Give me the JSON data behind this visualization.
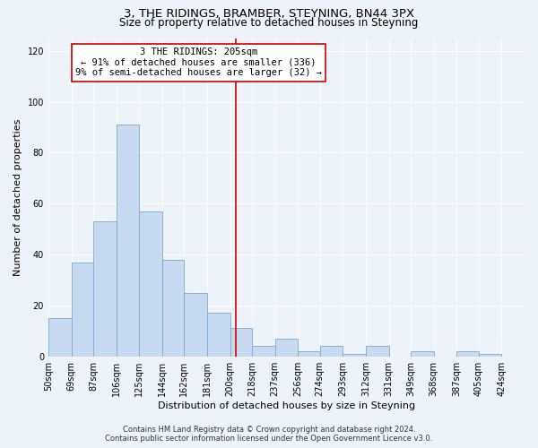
{
  "title": "3, THE RIDINGS, BRAMBER, STEYNING, BN44 3PX",
  "subtitle": "Size of property relative to detached houses in Steyning",
  "xlabel": "Distribution of detached houses by size in Steyning",
  "ylabel": "Number of detached properties",
  "bar_heights": [
    15,
    37,
    53,
    91,
    57,
    38,
    25,
    17,
    11,
    4,
    7,
    2,
    4,
    1,
    4,
    0,
    2,
    0,
    2,
    1
  ],
  "bin_labels": [
    "50sqm",
    "69sqm",
    "87sqm",
    "106sqm",
    "125sqm",
    "144sqm",
    "162sqm",
    "181sqm",
    "200sqm",
    "218sqm",
    "237sqm",
    "256sqm",
    "274sqm",
    "293sqm",
    "312sqm",
    "331sqm",
    "349sqm",
    "368sqm",
    "387sqm",
    "405sqm",
    "424sqm"
  ],
  "bin_edges": [
    50,
    69,
    87,
    106,
    125,
    144,
    162,
    181,
    200,
    218,
    237,
    256,
    274,
    293,
    312,
    331,
    349,
    368,
    387,
    405,
    424
  ],
  "bar_color": "#c8daf0",
  "bar_edge_color": "#7aabcf",
  "vline_x": 205,
  "vline_color": "#cc0000",
  "ylim": [
    0,
    125
  ],
  "yticks": [
    0,
    20,
    40,
    60,
    80,
    100,
    120
  ],
  "annotation_title": "3 THE RIDINGS: 205sqm",
  "annotation_line1": "← 91% of detached houses are smaller (336)",
  "annotation_line2": "9% of semi-detached houses are larger (32) →",
  "annotation_box_facecolor": "#ffffff",
  "annotation_box_edgecolor": "#cc0000",
  "footer1": "Contains HM Land Registry data © Crown copyright and database right 2024.",
  "footer2": "Contains public sector information licensed under the Open Government Licence v3.0.",
  "title_fontsize": 9.5,
  "subtitle_fontsize": 8.5,
  "axis_label_fontsize": 8,
  "tick_fontsize": 7,
  "annotation_fontsize": 7.5,
  "footer_fontsize": 6,
  "background_color": "#eef2f9"
}
